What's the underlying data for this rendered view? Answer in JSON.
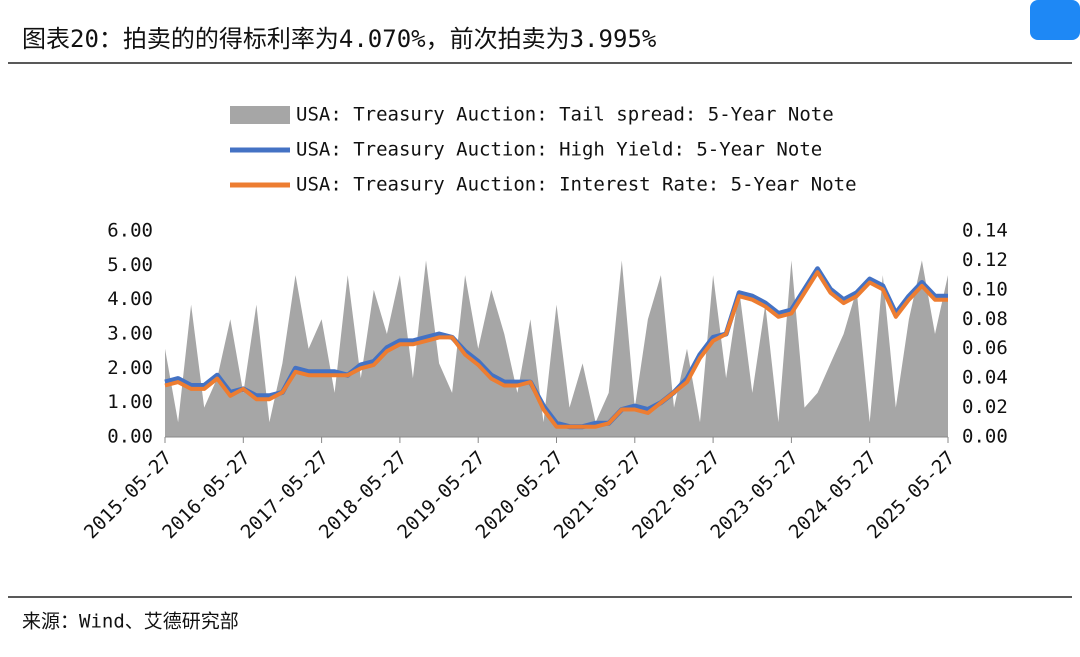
{
  "header": {
    "title": "图表20：拍卖的的得标利率为4.070%，前次拍卖为3.995%"
  },
  "footer": {
    "source": "来源：Wind、艾德研究部"
  },
  "chart_data": {
    "type": "line",
    "categories": [
      "2015-05-27",
      null,
      null,
      null,
      null,
      null,
      "2016-05-27",
      null,
      null,
      null,
      null,
      null,
      "2017-05-27",
      null,
      null,
      null,
      null,
      null,
      "2018-05-27",
      null,
      null,
      null,
      null,
      null,
      "2019-05-27",
      null,
      null,
      null,
      null,
      null,
      "2020-05-27",
      null,
      null,
      null,
      null,
      null,
      "2021-05-27",
      null,
      null,
      null,
      null,
      null,
      "2022-05-27",
      null,
      null,
      null,
      null,
      null,
      "2023-05-27",
      null,
      null,
      null,
      null,
      null,
      "2024-05-27",
      null,
      null,
      null,
      null,
      null,
      "2025-05-27"
    ],
    "series": [
      {
        "name": "USA: Treasury Auction: Tail spread: 5-Year Note",
        "color": "#a6a6a6",
        "axis": "y2",
        "kind": "area",
        "values": [
          0.06,
          0.01,
          0.09,
          0.02,
          0.04,
          0.08,
          0.03,
          0.09,
          0.01,
          0.05,
          0.11,
          0.06,
          0.08,
          0.03,
          0.11,
          0.04,
          0.1,
          0.07,
          0.11,
          0.04,
          0.12,
          0.05,
          0.03,
          0.11,
          0.06,
          0.1,
          0.07,
          0.03,
          0.08,
          0.01,
          0.09,
          0.02,
          0.05,
          0.01,
          0.03,
          0.12,
          0.02,
          0.08,
          0.11,
          0.02,
          0.06,
          0.01,
          0.11,
          0.04,
          0.1,
          0.03,
          0.09,
          0.01,
          0.12,
          0.02,
          0.03,
          0.05,
          0.07,
          0.1,
          0.01,
          0.11,
          0.02,
          0.08,
          0.12,
          0.07,
          0.11
        ]
      },
      {
        "name": "USA: Treasury Auction: High Yield: 5-Year Note",
        "color": "#4472c4",
        "values": [
          1.6,
          1.7,
          1.5,
          1.5,
          1.8,
          1.3,
          1.4,
          1.2,
          1.2,
          1.3,
          2.0,
          1.9,
          1.9,
          1.9,
          1.8,
          2.1,
          2.2,
          2.6,
          2.8,
          2.8,
          2.9,
          3.0,
          2.9,
          2.5,
          2.2,
          1.8,
          1.6,
          1.6,
          1.6,
          0.9,
          0.4,
          0.3,
          0.3,
          0.4,
          0.4,
          0.8,
          0.9,
          0.8,
          1.0,
          1.3,
          1.7,
          2.4,
          2.9,
          3.0,
          4.2,
          4.1,
          3.9,
          3.6,
          3.7,
          4.3,
          4.9,
          4.3,
          4.0,
          4.2,
          4.6,
          4.4,
          3.6,
          4.1,
          4.5,
          4.1,
          4.1
        ]
      },
      {
        "name": "USA: Treasury Auction: Interest Rate: 5-Year Note",
        "color": "#ed7d31",
        "values": [
          1.5,
          1.6,
          1.4,
          1.4,
          1.7,
          1.2,
          1.4,
          1.1,
          1.1,
          1.3,
          1.9,
          1.8,
          1.8,
          1.8,
          1.8,
          2.0,
          2.1,
          2.5,
          2.7,
          2.7,
          2.8,
          2.9,
          2.9,
          2.4,
          2.1,
          1.7,
          1.5,
          1.5,
          1.6,
          0.8,
          0.3,
          0.3,
          0.3,
          0.3,
          0.4,
          0.8,
          0.8,
          0.7,
          1.0,
          1.3,
          1.6,
          2.3,
          2.8,
          3.0,
          4.1,
          4.0,
          3.8,
          3.5,
          3.6,
          4.2,
          4.8,
          4.2,
          3.9,
          4.1,
          4.5,
          4.3,
          3.5,
          4.0,
          4.4,
          4.0,
          4.0
        ]
      }
    ],
    "ylim": [
      0,
      6
    ],
    "yticks": [
      {
        "value": 0,
        "label": "0.00"
      },
      {
        "value": 1,
        "label": "1.00"
      },
      {
        "value": 2,
        "label": "2.00"
      },
      {
        "value": 3,
        "label": "3.00"
      },
      {
        "value": 4,
        "label": "4.00"
      },
      {
        "value": 5,
        "label": "5.00"
      },
      {
        "value": 6,
        "label": "6.00"
      }
    ],
    "y2lim": [
      0,
      0.14
    ],
    "y2ticks": [
      {
        "value": 0,
        "label": "0.00"
      },
      {
        "value": 0.02,
        "label": "0.02"
      },
      {
        "value": 0.04,
        "label": "0.04"
      },
      {
        "value": 0.06,
        "label": "0.06"
      },
      {
        "value": 0.08,
        "label": "0.08"
      },
      {
        "value": 0.1,
        "label": "0.10"
      },
      {
        "value": 0.12,
        "label": "0.12"
      },
      {
        "value": 0.14,
        "label": "0.14"
      }
    ],
    "legend": "top"
  }
}
